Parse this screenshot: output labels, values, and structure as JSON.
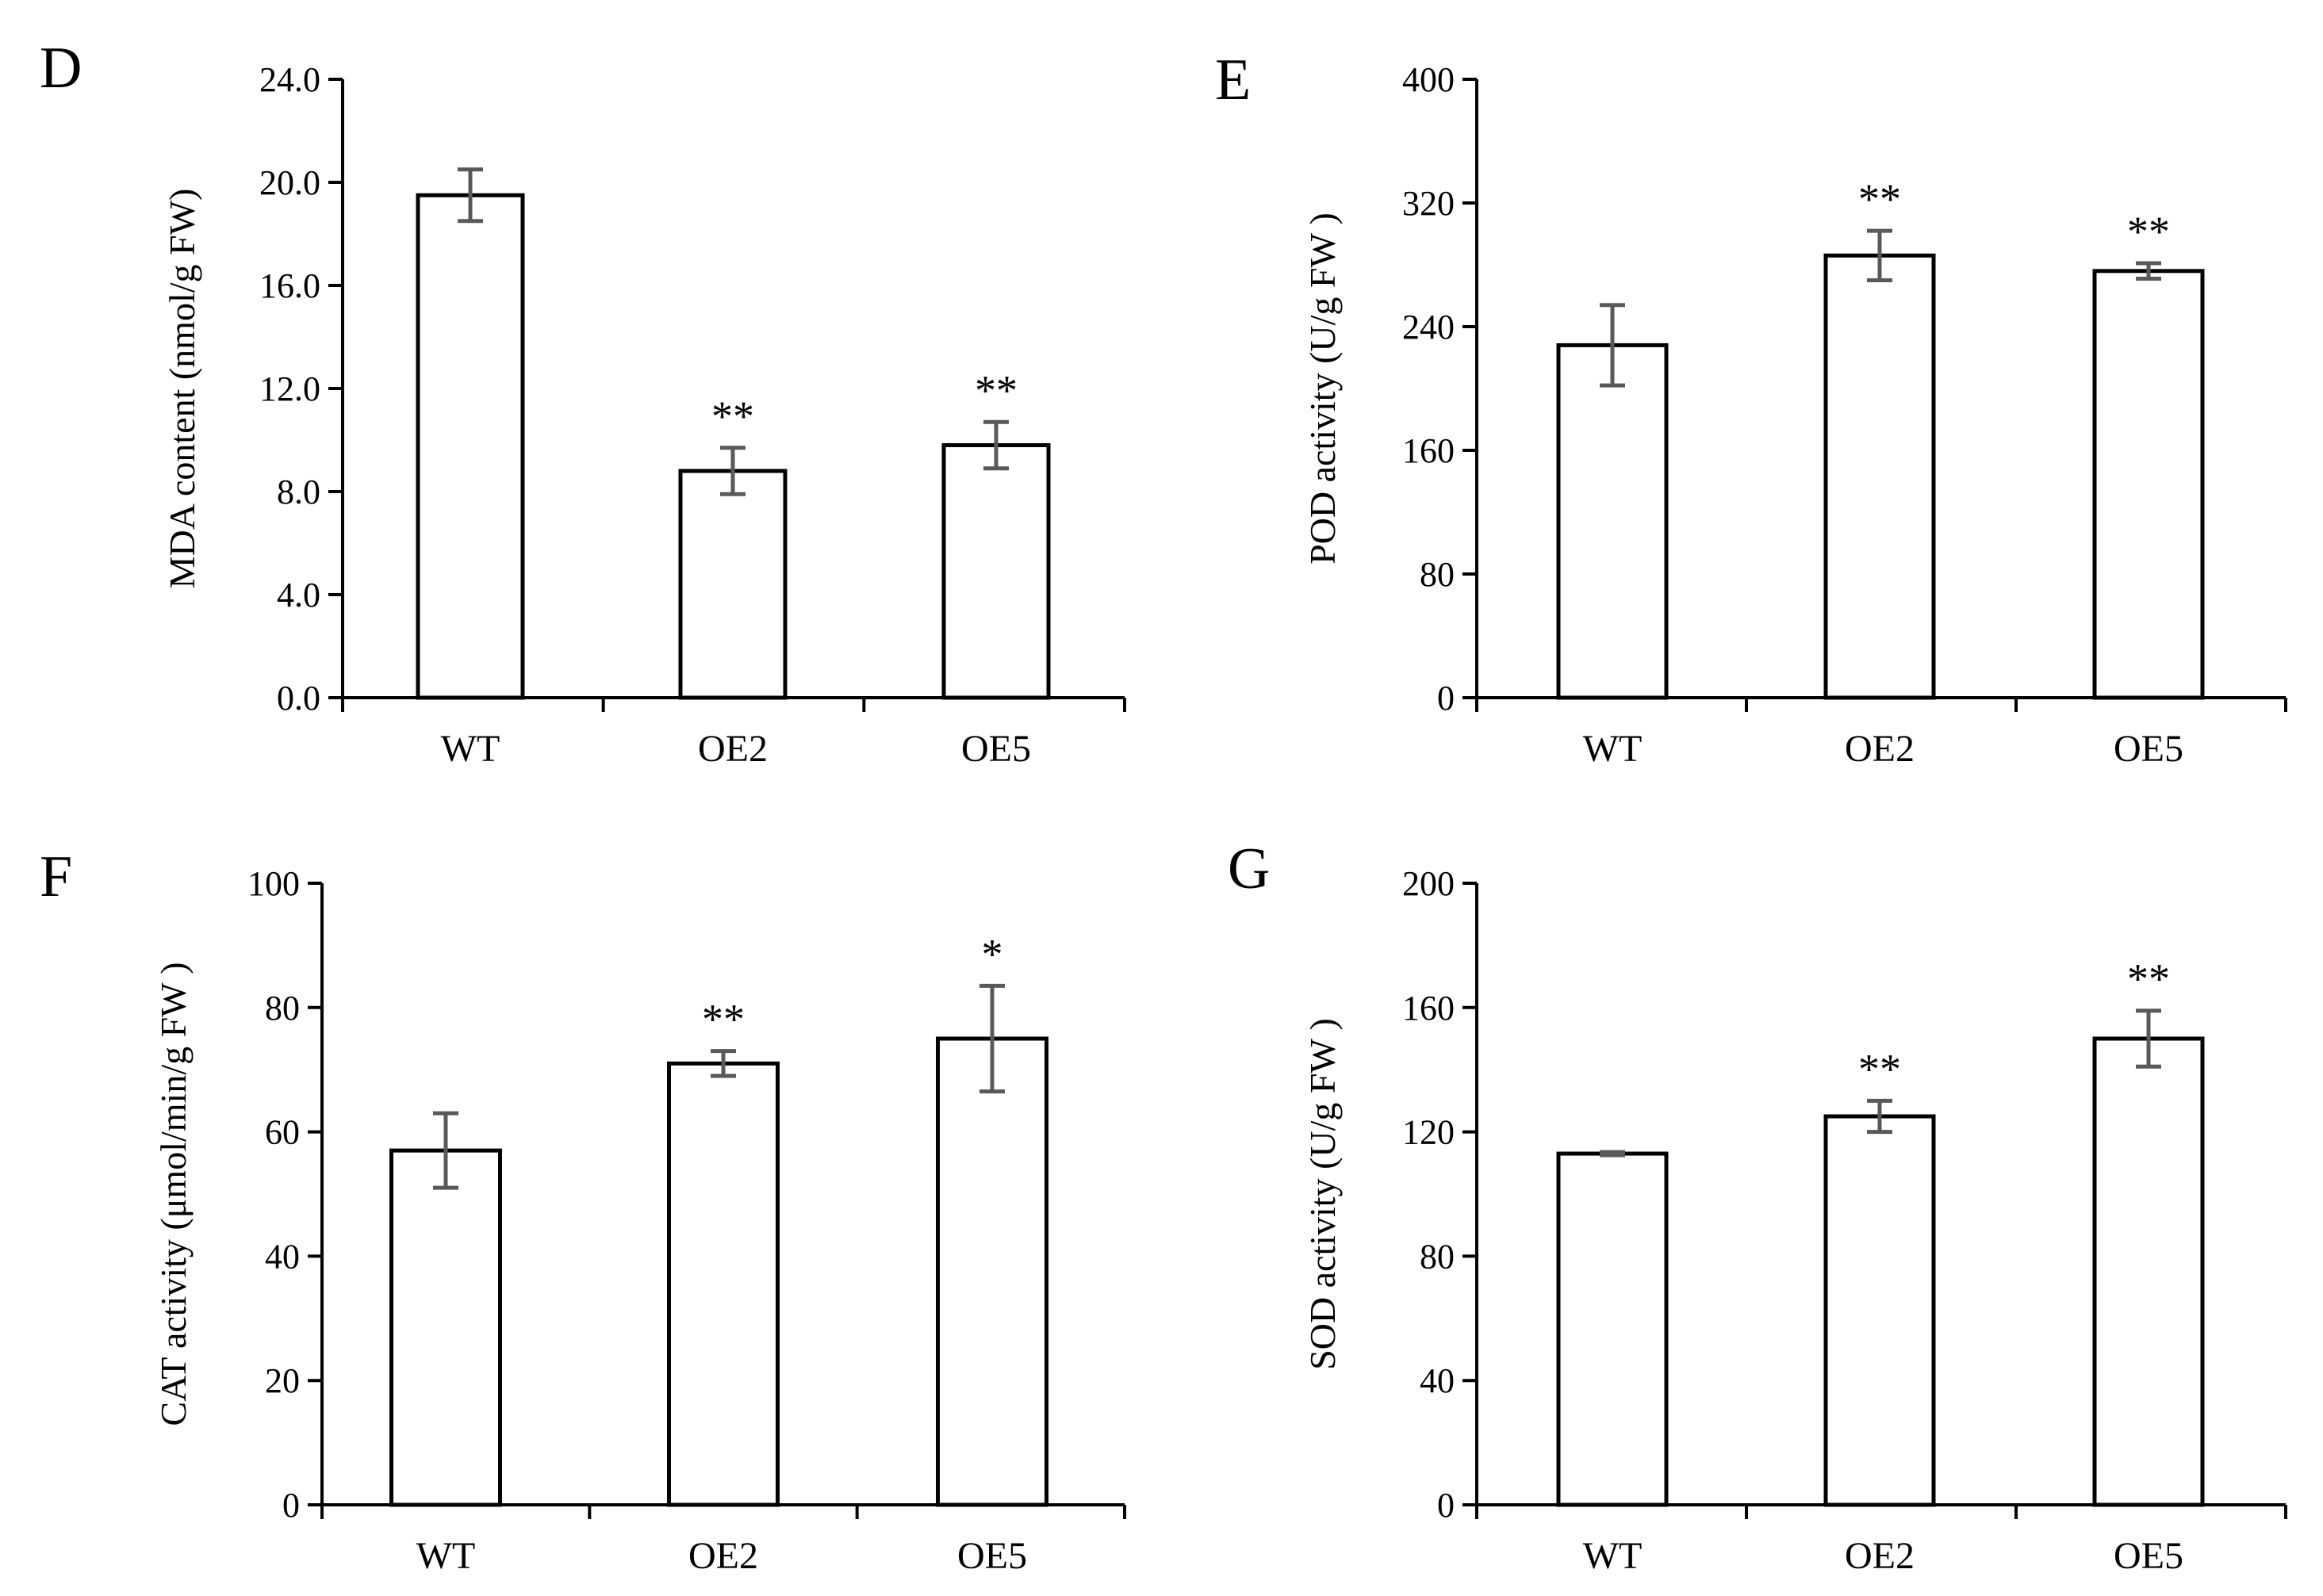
{
  "figure": {
    "colors": {
      "bar_fill": "#ffffff",
      "bar_stroke": "#000000",
      "axis": "#000000",
      "error_bar": "#595959"
    }
  },
  "chart_data": [
    {
      "panel": "D",
      "type": "bar",
      "categories": [
        "WT",
        "OE2",
        "OE5"
      ],
      "values": [
        19.5,
        8.8,
        9.8
      ],
      "errors": [
        1.0,
        0.9,
        0.9
      ],
      "significance": [
        "",
        "**",
        "**"
      ],
      "ylabel": "MDA content (nmol/g FW)",
      "xlabel": "",
      "ylim": [
        0,
        24
      ],
      "yticks": [
        0,
        4,
        8,
        12,
        16,
        20,
        24
      ],
      "ytick_labels": [
        "0.0",
        "4.0",
        "8.0",
        "12.0",
        "16.0",
        "20.0",
        "24.0"
      ]
    },
    {
      "panel": "E",
      "type": "bar",
      "categories": [
        "WT",
        "OE2",
        "OE5"
      ],
      "values": [
        228,
        286,
        276
      ],
      "errors": [
        26,
        16,
        5
      ],
      "significance": [
        "",
        "**",
        "**"
      ],
      "ylabel": "POD  activity (U/g FW )",
      "xlabel": "",
      "ylim": [
        0,
        400
      ],
      "yticks": [
        0,
        80,
        160,
        240,
        320,
        400
      ],
      "ytick_labels": [
        "0",
        "80",
        "160",
        "240",
        "320",
        "400"
      ]
    },
    {
      "panel": "F",
      "type": "bar",
      "categories": [
        "WT",
        "OE2",
        "OE5"
      ],
      "values": [
        57,
        71,
        75
      ],
      "errors": [
        6,
        2,
        8.5
      ],
      "significance": [
        "",
        "**",
        "*"
      ],
      "ylabel": "CAT  activity (μmol/min/g FW )",
      "xlabel": "",
      "ylim": [
        0,
        100
      ],
      "yticks": [
        0,
        20,
        40,
        60,
        80,
        100
      ],
      "ytick_labels": [
        "0",
        "20",
        "40",
        "60",
        "80",
        "100"
      ]
    },
    {
      "panel": "G",
      "type": "bar",
      "categories": [
        "WT",
        "OE2",
        "OE5"
      ],
      "values": [
        113,
        125,
        150
      ],
      "errors": [
        0.5,
        5,
        9
      ],
      "significance": [
        "",
        "**",
        "**"
      ],
      "ylabel": "SOD  activity (U/g FW )",
      "xlabel": "",
      "ylim": [
        0,
        200
      ],
      "yticks": [
        0,
        40,
        80,
        120,
        160,
        200
      ],
      "ytick_labels": [
        "0",
        "40",
        "80",
        "120",
        "160",
        "200"
      ]
    }
  ]
}
